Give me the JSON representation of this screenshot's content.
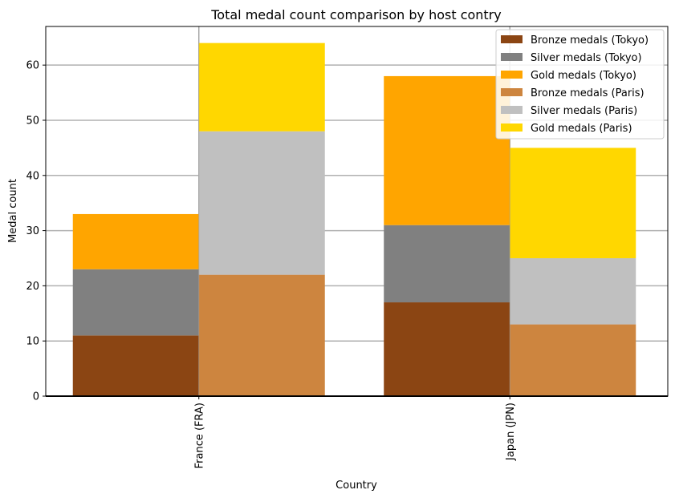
{
  "chart_data": {
    "type": "bar",
    "stacked": true,
    "title": "Total medal count comparison by host contry",
    "xlabel": "Country",
    "ylabel": "Medal count",
    "categories": [
      "France (FRA)",
      "Japan (JPN)"
    ],
    "ylim": [
      0,
      67
    ],
    "yticks": [
      0,
      10,
      20,
      30,
      40,
      50,
      60
    ],
    "grid": true,
    "legend_position": "top-right",
    "groups": [
      {
        "name": "Tokyo",
        "series": [
          {
            "name": "Bronze medals (Tokyo)",
            "color": "#8b4513",
            "values": [
              11,
              17
            ]
          },
          {
            "name": "Silver medals (Tokyo)",
            "color": "#808080",
            "values": [
              12,
              14
            ]
          },
          {
            "name": "Gold medals (Tokyo)",
            "color": "#ffa500",
            "values": [
              10,
              27
            ]
          }
        ]
      },
      {
        "name": "Paris",
        "series": [
          {
            "name": "Bronze medals (Paris)",
            "color": "#cd853f",
            "values": [
              22,
              13
            ]
          },
          {
            "name": "Silver medals (Paris)",
            "color": "#c0c0c0",
            "values": [
              26,
              12
            ]
          },
          {
            "name": "Gold medals (Paris)",
            "color": "#ffd700",
            "values": [
              16,
              20
            ]
          }
        ]
      }
    ]
  }
}
